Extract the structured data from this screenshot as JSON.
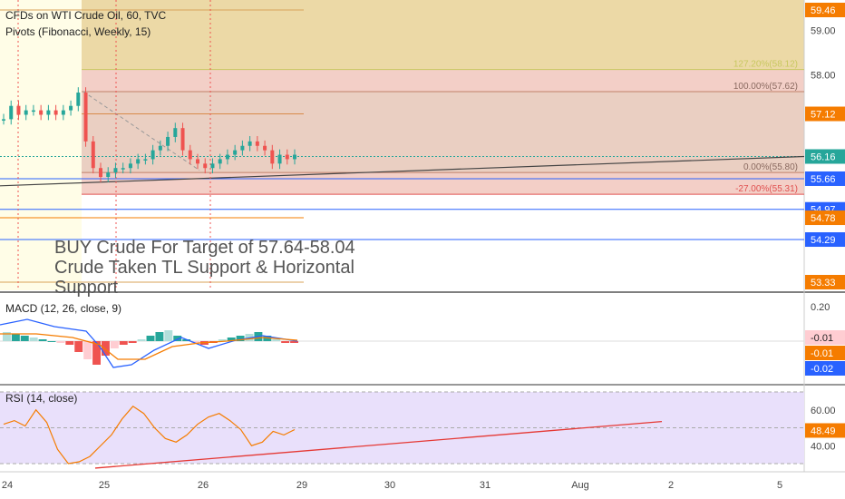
{
  "header": {
    "title": "CFDs on WTI Crude Oil, 60, TVC",
    "indicator": "Pivots (Fibonacci, Weekly, 15)"
  },
  "note": {
    "line1": "BUY Crude For Target of 57.64-58.04",
    "line2": "Crude Taken TL Support & Horizontal",
    "line3": "Support"
  },
  "colors": {
    "up": "#26a69a",
    "down": "#ef5350",
    "orange": "#f57c00",
    "blue": "#2962ff",
    "rsi_line": "#f57c00",
    "rsi_band": "#e9e0fb"
  },
  "chart_data": [
    {
      "type": "candlestick",
      "ylim": [
        52.9,
        59.8
      ],
      "x_ticks": [
        "24",
        "25",
        "26",
        "29",
        "30",
        "31",
        "Aug",
        "2",
        "5"
      ],
      "y_ticks": [
        "59.00",
        "58.00",
        "57.12",
        "56.16",
        "55.66",
        "54.97",
        "54.78",
        "54.29",
        "53.33",
        "59.46"
      ],
      "price_badges": [
        {
          "label": "59.46",
          "value": 59.46,
          "color": "#f57c00"
        },
        {
          "label": "57.12",
          "value": 57.12,
          "color": "#f57c00"
        },
        {
          "label": "56.16",
          "value": 56.16,
          "color": "#26a69a"
        },
        {
          "label": "55.66",
          "value": 55.66,
          "color": "#2962ff"
        },
        {
          "label": "54.97",
          "value": 54.97,
          "color": "#2962ff"
        },
        {
          "label": "54.78",
          "value": 54.78,
          "color": "#f57c00"
        },
        {
          "label": "54.29",
          "value": 54.29,
          "color": "#2962ff"
        },
        {
          "label": "53.33",
          "value": 53.33,
          "color": "#f57c00"
        }
      ],
      "fib_levels": [
        {
          "label": "127.20%(58.12)",
          "value": 58.12
        },
        {
          "label": "100.00%(57.62)",
          "value": 57.62
        },
        {
          "label": "0.00%(55.80)",
          "value": 55.8
        },
        {
          "label": "-27.00%(55.31)",
          "value": 55.31
        }
      ],
      "close": [
        57.0,
        57.3,
        57.1,
        57.2,
        57.2,
        57.1,
        57.2,
        57.1,
        57.2,
        57.3,
        57.6,
        56.5,
        55.9,
        55.7,
        55.8,
        55.9,
        55.9,
        56.0,
        56.1,
        56.1,
        56.3,
        56.4,
        56.6,
        56.8,
        56.3,
        56.1,
        56.0,
        55.9,
        56.0,
        56.1,
        56.2,
        56.3,
        56.4,
        56.5,
        56.4,
        56.3,
        56.0,
        56.2,
        56.1,
        56.2
      ]
    },
    {
      "type": "bar",
      "title": "MACD (12, 26, close, 9)",
      "ylim": [
        -0.035,
        0.25
      ],
      "y_ticks": [
        "0.20",
        "-0.01",
        "-0.01",
        "-0.02"
      ],
      "badges": [
        {
          "label": "-0.01",
          "color": "#ffcdd2",
          "text": "#222"
        },
        {
          "label": "-0.01",
          "color": "#f57c00",
          "text": "#fff"
        },
        {
          "label": "-0.02",
          "color": "#2962ff",
          "text": "#fff"
        }
      ]
    },
    {
      "type": "line",
      "title": "RSI (14, close)",
      "ylim": [
        25,
        75
      ],
      "y_ticks": [
        "60.00",
        "48.49",
        "40.00"
      ],
      "last_value": "48.49",
      "values": [
        52,
        54,
        51,
        60,
        53,
        38,
        30,
        31,
        34,
        40,
        46,
        55,
        62,
        58,
        50,
        44,
        42,
        46,
        52,
        56,
        58,
        54,
        49,
        40,
        42,
        48,
        46,
        49
      ]
    }
  ]
}
